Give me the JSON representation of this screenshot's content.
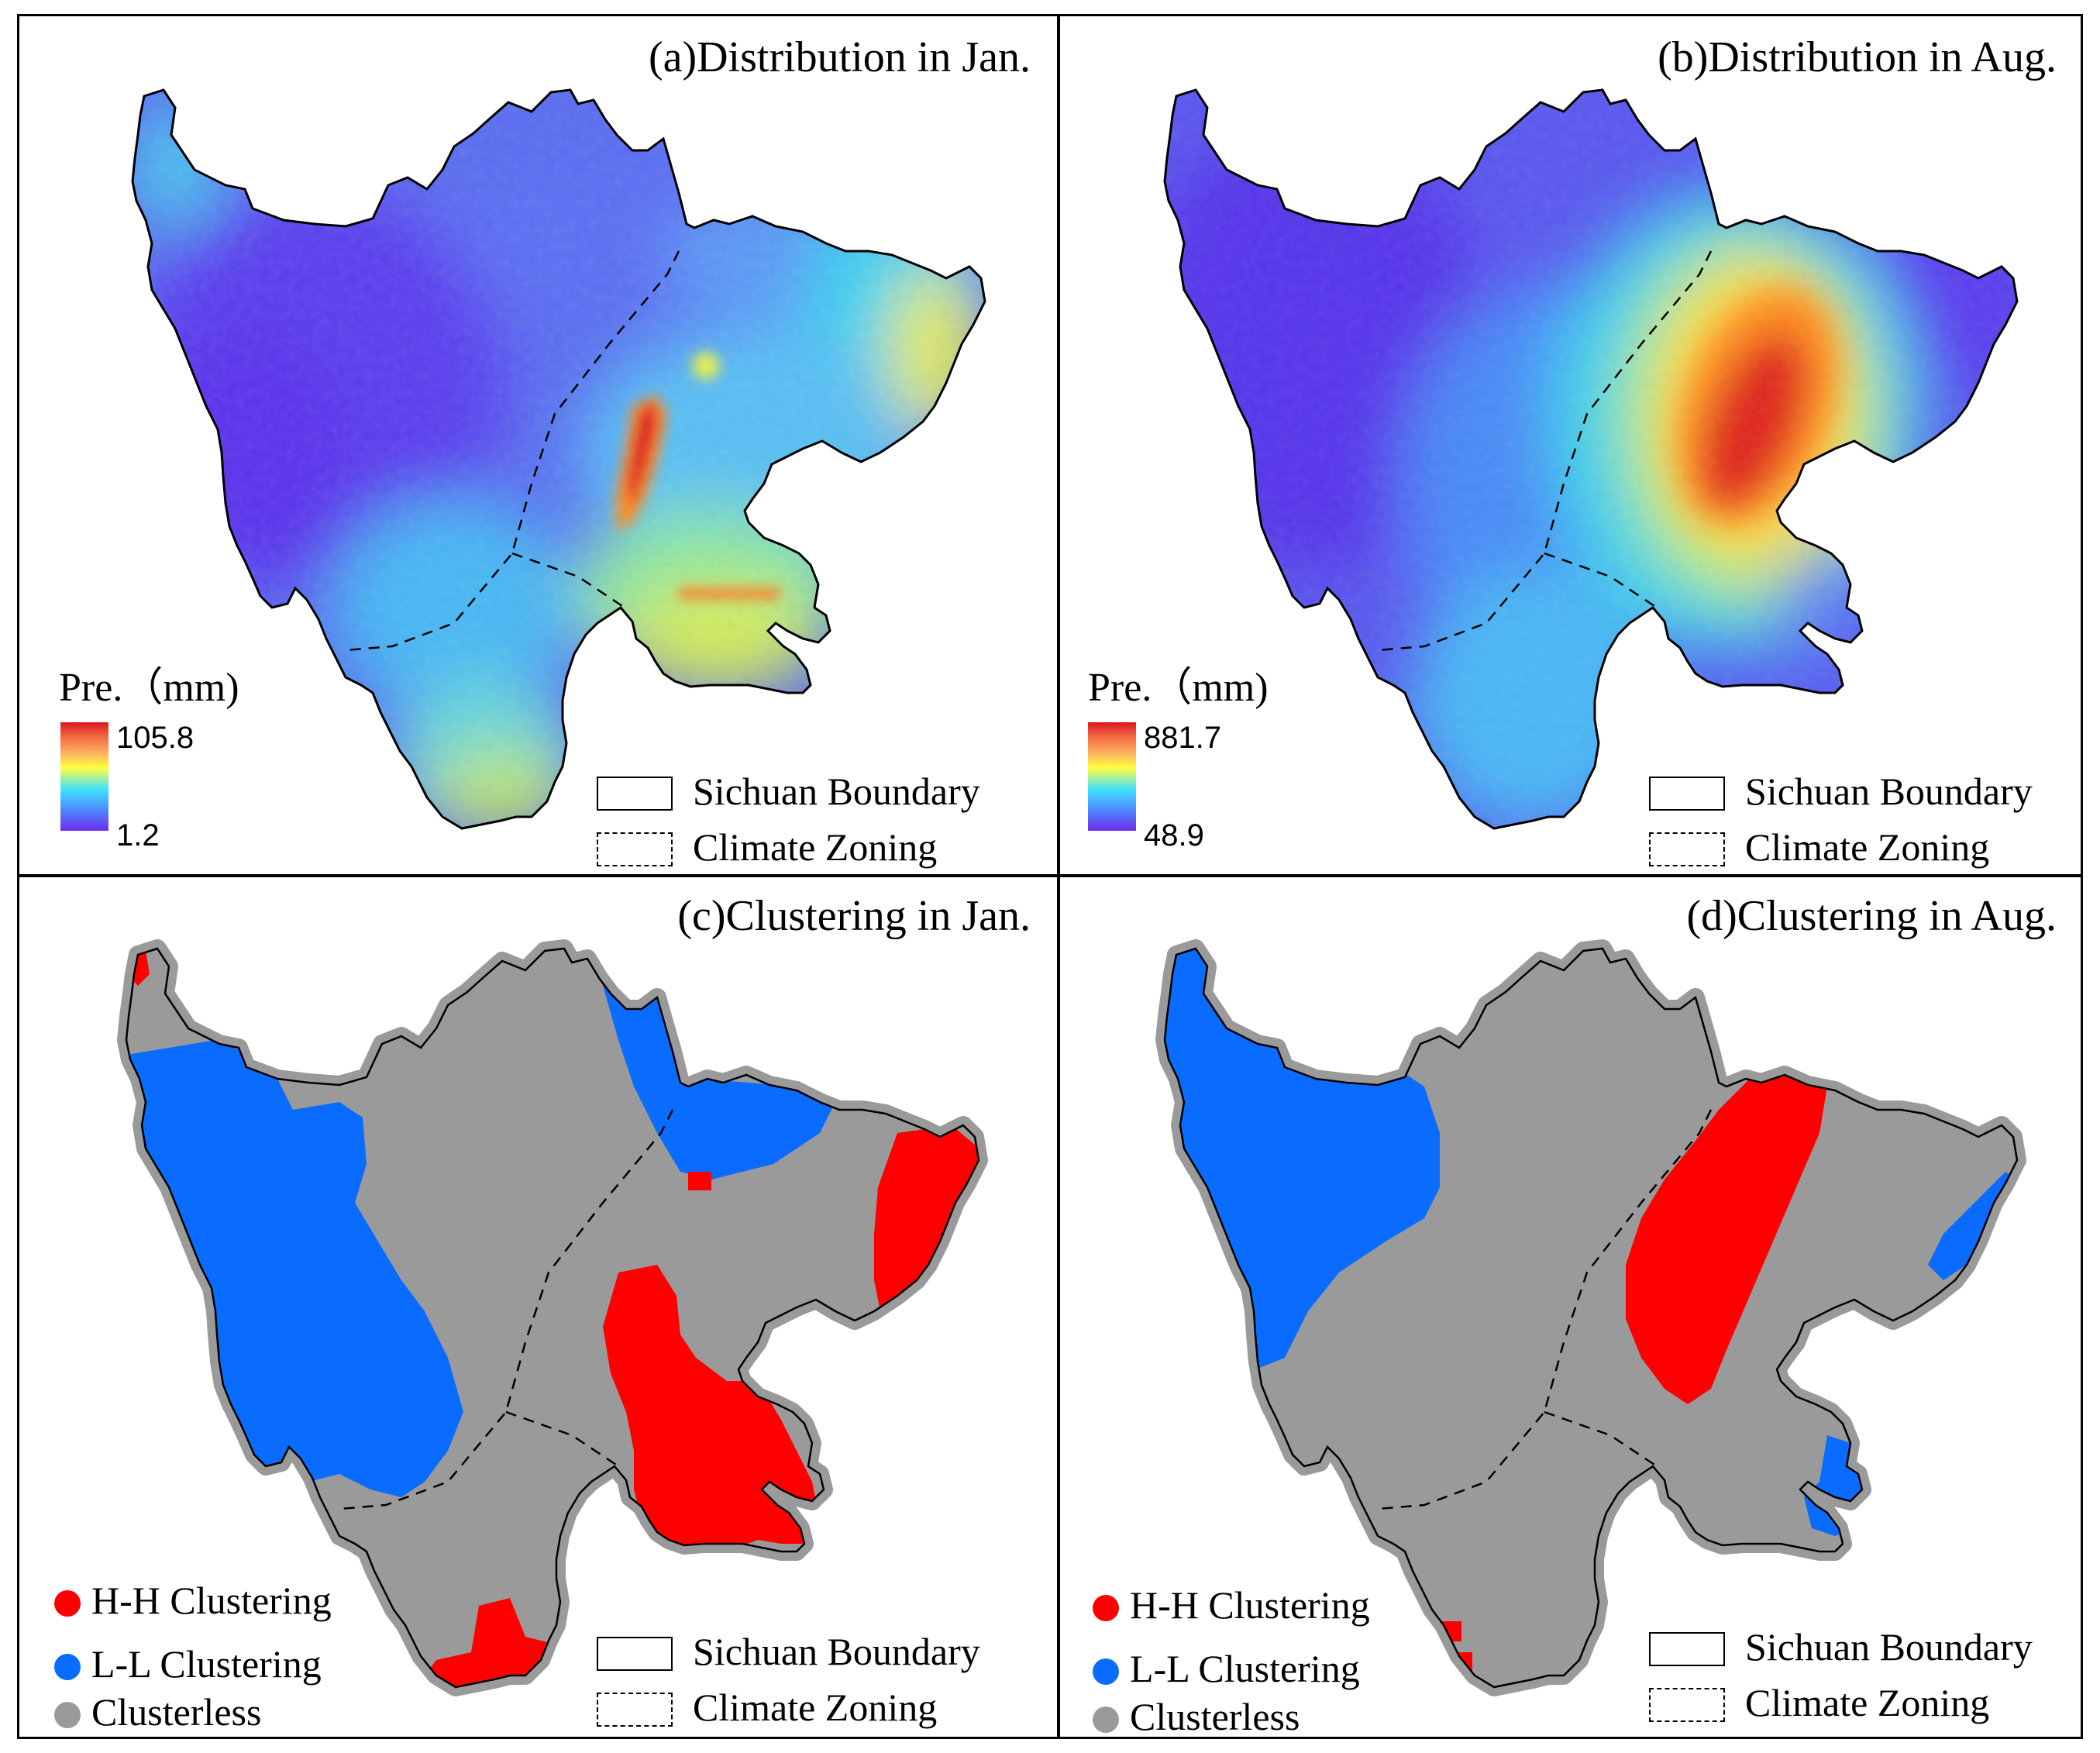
{
  "panels": {
    "a": {
      "title": "(a)Distribution in Jan.",
      "legend_title": "Pre.（mm)",
      "max": "105.8",
      "min": "1.2"
    },
    "b": {
      "title": "(b)Distribution in Aug.",
      "legend_title": "Pre.（mm)",
      "max": "881.7",
      "min": "48.9"
    },
    "c": {
      "title": "(c)Clustering in Jan."
    },
    "d": {
      "title": "(d)Clustering in Aug."
    }
  },
  "legend": {
    "boundary": "Sichuan Boundary",
    "zoning": "Climate Zoning",
    "hh": "H-H Clustering",
    "ll": "L-L Clustering",
    "none": "Clusterless"
  },
  "colors": {
    "hh": "#ff0000",
    "ll": "#0a6cff",
    "clusterless": "#9a9a9a",
    "low": "#6a2cf0",
    "high": "#d7191c"
  }
}
